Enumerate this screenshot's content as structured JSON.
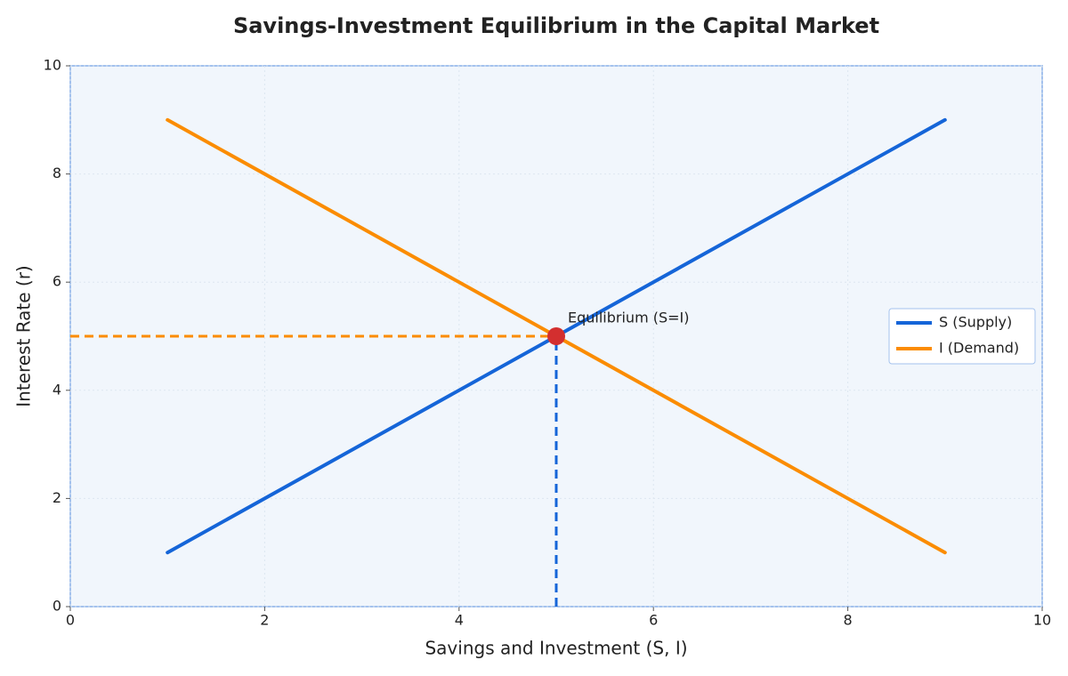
{
  "chart_data": {
    "type": "line",
    "title": "Savings-Investment Equilibrium in the Capital Market",
    "xlabel": "Savings and Investment (S, I)",
    "ylabel": "Interest Rate (r)",
    "x": [
      1,
      9
    ],
    "series": [
      {
        "name": "S (Supply)",
        "color": "#1565d8",
        "values": [
          1,
          9
        ]
      },
      {
        "name": "I (Demand)",
        "color": "#fb8c00",
        "values": [
          9,
          1
        ]
      }
    ],
    "annotations": [
      {
        "x": 5,
        "y": 5,
        "text": "Equilibrium (S=I)",
        "color": "#d32f2f"
      }
    ],
    "xlim": [
      0,
      10
    ],
    "ylim": [
      0,
      10
    ],
    "xticks": [
      0,
      2,
      4,
      6,
      8,
      10
    ],
    "yticks": [
      0,
      2,
      4,
      6,
      8,
      10
    ],
    "grid": true,
    "legend": "center right"
  }
}
